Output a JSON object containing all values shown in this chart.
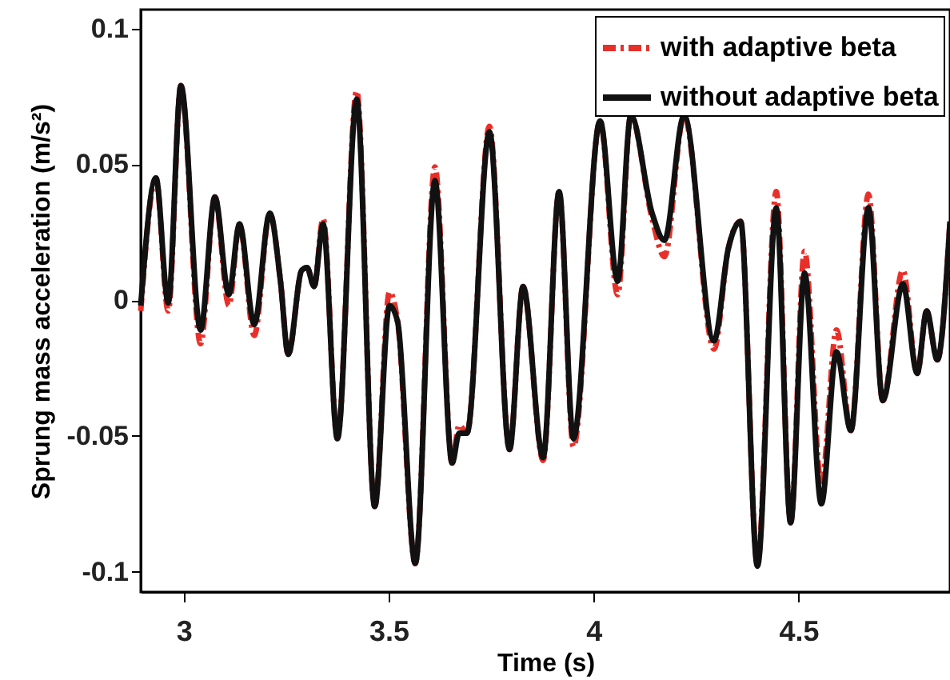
{
  "chart_data": {
    "type": "line",
    "xlabel": "Time (s)",
    "ylabel": "Sprung mass acceleration (m/s²)",
    "xlim": [
      2.895,
      4.87
    ],
    "ylim": [
      -0.1075,
      0.107
    ],
    "xticks": [
      3,
      3.5,
      4,
      4.5
    ],
    "yticks": [
      -0.1,
      -0.05,
      0,
      0.05,
      0.1
    ],
    "grid": false,
    "legend": "top right",
    "marker": "none",
    "series": [
      {
        "name": "with adaptive beta",
        "color": "#e8302a",
        "line_style": "dashed",
        "x": [
          2.895,
          2.932,
          2.962,
          2.993,
          3.041,
          3.076,
          3.11,
          3.136,
          3.172,
          3.21,
          3.236,
          3.255,
          3.288,
          3.301,
          3.318,
          3.34,
          3.375,
          3.422,
          3.466,
          3.502,
          3.522,
          3.565,
          3.613,
          3.655,
          3.672,
          3.691,
          3.746,
          3.795,
          3.828,
          3.877,
          3.916,
          3.951,
          4.016,
          4.059,
          4.091,
          4.143,
          4.173,
          4.221,
          4.294,
          4.329,
          4.359,
          4.4,
          4.446,
          4.481,
          4.515,
          4.556,
          4.593,
          4.628,
          4.671,
          4.706,
          4.755,
          4.79,
          4.813,
          4.839,
          4.87
        ],
        "values": [
          -0.004,
          0.045,
          -0.004,
          0.079,
          -0.016,
          0.038,
          -0.002,
          0.028,
          -0.013,
          0.032,
          0.007,
          -0.02,
          0.011,
          0.012,
          0.005,
          0.03,
          -0.051,
          0.077,
          -0.076,
          0.003,
          -0.008,
          -0.097,
          0.049,
          -0.06,
          -0.046,
          -0.049,
          0.064,
          -0.055,
          0.005,
          -0.059,
          0.04,
          -0.054,
          0.066,
          0.002,
          0.068,
          0.03,
          0.016,
          0.068,
          -0.018,
          0.019,
          0.029,
          -0.097,
          0.04,
          -0.082,
          0.018,
          -0.068,
          -0.011,
          -0.048,
          0.039,
          -0.037,
          0.011,
          -0.027,
          -0.004,
          -0.022,
          0.029
        ]
      },
      {
        "name": "without adaptive beta",
        "color": "#111111",
        "line_style": "solid",
        "x": [
          2.895,
          2.932,
          2.962,
          2.993,
          3.041,
          3.076,
          3.11,
          3.136,
          3.172,
          3.21,
          3.236,
          3.255,
          3.288,
          3.301,
          3.318,
          3.34,
          3.375,
          3.422,
          3.466,
          3.502,
          3.522,
          3.565,
          3.613,
          3.655,
          3.672,
          3.691,
          3.746,
          3.795,
          3.828,
          3.877,
          3.916,
          3.951,
          4.016,
          4.059,
          4.091,
          4.143,
          4.173,
          4.221,
          4.294,
          4.329,
          4.359,
          4.4,
          4.446,
          4.481,
          4.515,
          4.556,
          4.593,
          4.628,
          4.671,
          4.706,
          4.755,
          4.79,
          4.813,
          4.839,
          4.87
        ],
        "values": [
          -0.002,
          0.045,
          -0.001,
          0.079,
          -0.011,
          0.038,
          0.002,
          0.028,
          -0.009,
          0.032,
          0.007,
          -0.02,
          0.011,
          0.012,
          0.005,
          0.028,
          -0.051,
          0.074,
          -0.076,
          -0.002,
          -0.008,
          -0.097,
          0.044,
          -0.06,
          -0.049,
          -0.049,
          0.062,
          -0.055,
          0.005,
          -0.058,
          0.04,
          -0.051,
          0.066,
          0.007,
          0.068,
          0.032,
          0.022,
          0.068,
          -0.015,
          0.019,
          0.029,
          -0.098,
          0.034,
          -0.082,
          0.01,
          -0.075,
          -0.019,
          -0.048,
          0.034,
          -0.037,
          0.006,
          -0.027,
          -0.004,
          -0.022,
          0.029
        ]
      }
    ]
  }
}
